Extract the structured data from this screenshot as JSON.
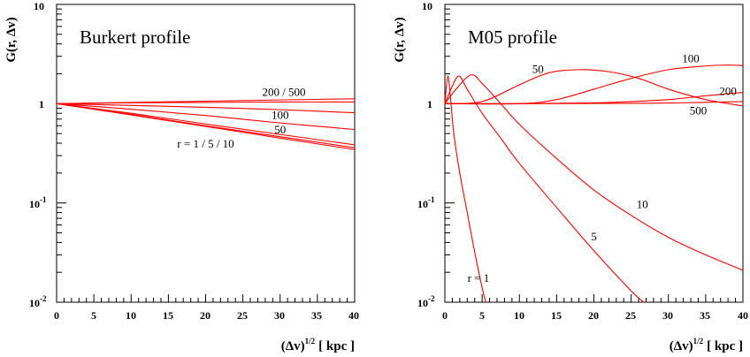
{
  "chart_data": [
    {
      "type": "line",
      "title": "Burkert profile",
      "xlabel": "(Δv)^1/2 [ kpc ]",
      "xlabel_base": "(Δv)",
      "xlabel_sup": "1/2",
      "xlabel_unit": "[ kpc ]",
      "ylabel": "G(r, Δv)",
      "ylabel_text": "G(r, Δv)",
      "xlim": [
        0,
        40
      ],
      "ylim": [
        0.01,
        10
      ],
      "yscale": "log",
      "grid": false,
      "xticks": [
        0,
        5,
        10,
        15,
        20,
        25,
        30,
        35,
        40
      ],
      "yticks": [
        {
          "base": "10",
          "exp": "",
          "value": 10
        },
        {
          "base": "1",
          "exp": "",
          "value": 1
        },
        {
          "base": "10",
          "exp": "-1",
          "value": 0.1
        },
        {
          "base": "10",
          "exp": "-2",
          "value": 0.01
        }
      ],
      "series": [
        {
          "label": "r = 1",
          "x": [
            0,
            10,
            20,
            30,
            40
          ],
          "y": [
            1,
            0.77,
            0.59,
            0.45,
            0.345
          ]
        },
        {
          "label": "r = 5",
          "x": [
            0,
            10,
            20,
            30,
            40
          ],
          "y": [
            1,
            0.78,
            0.6,
            0.465,
            0.36
          ]
        },
        {
          "label": "r = 10",
          "x": [
            0,
            10,
            20,
            30,
            40
          ],
          "y": [
            1,
            0.8,
            0.625,
            0.49,
            0.385
          ]
        },
        {
          "label": "50",
          "x": [
            0,
            10,
            20,
            30,
            40
          ],
          "y": [
            1,
            0.88,
            0.76,
            0.64,
            0.55
          ]
        },
        {
          "label": "100",
          "x": [
            0,
            10,
            20,
            30,
            40
          ],
          "y": [
            1,
            0.96,
            0.92,
            0.87,
            0.81
          ]
        },
        {
          "label": "200",
          "x": [
            0,
            10,
            20,
            30,
            40
          ],
          "y": [
            1,
            1.02,
            1.03,
            1.04,
            1.04
          ]
        },
        {
          "label": "500",
          "x": [
            0,
            10,
            20,
            30,
            40
          ],
          "y": [
            1,
            1.03,
            1.06,
            1.09,
            1.12
          ]
        }
      ],
      "annotations": [
        {
          "text": "200 / 500",
          "x": 30.5,
          "y": 1.2
        },
        {
          "text": "100",
          "x": 30,
          "y": 0.7
        },
        {
          "text": "50",
          "x": 30,
          "y": 0.5
        },
        {
          "text": "r = 1 / 5 / 10",
          "x": 20,
          "y": 0.36
        }
      ]
    },
    {
      "type": "line",
      "title": "M05 profile",
      "xlabel": "(Δv)^1/2 [ kpc ]",
      "xlabel_base": "(Δv)",
      "xlabel_sup": "1/2",
      "xlabel_unit": "[ kpc ]",
      "ylabel": "G(r, Δv)",
      "ylabel_text": "G(r, Δv)",
      "xlim": [
        0,
        40
      ],
      "ylim": [
        0.01,
        10
      ],
      "yscale": "log",
      "grid": false,
      "xticks": [
        0,
        5,
        10,
        15,
        20,
        25,
        30,
        35,
        40
      ],
      "yticks": [
        {
          "base": "10",
          "exp": "",
          "value": 10
        },
        {
          "base": "1",
          "exp": "",
          "value": 1
        },
        {
          "base": "10",
          "exp": "-1",
          "value": 0.1
        },
        {
          "base": "10",
          "exp": "-2",
          "value": 0.01
        }
      ],
      "series": [
        {
          "label": "r = 1",
          "x": [
            0,
            0.4,
            0.8,
            1.2,
            2,
            3,
            4,
            5,
            5.5
          ],
          "y": [
            1,
            1.9,
            1.05,
            0.5,
            0.2,
            0.08,
            0.032,
            0.014,
            0.01
          ]
        },
        {
          "label": "5",
          "x": [
            0,
            1,
            1.9,
            3,
            5,
            7.5,
            10,
            15,
            20,
            25,
            26.7
          ],
          "y": [
            1,
            1.5,
            1.9,
            1.4,
            0.8,
            0.45,
            0.25,
            0.09,
            0.033,
            0.013,
            0.01
          ]
        },
        {
          "label": "10",
          "x": [
            0,
            1.5,
            3.5,
            5,
            7.5,
            10,
            15,
            20,
            25,
            30,
            35,
            40
          ],
          "y": [
            1,
            1.4,
            1.95,
            1.6,
            1.0,
            0.62,
            0.28,
            0.135,
            0.075,
            0.045,
            0.03,
            0.021
          ]
        },
        {
          "label": "50",
          "x": [
            0,
            5,
            10,
            14,
            18,
            22,
            26,
            30,
            35,
            40
          ],
          "y": [
            1,
            1.05,
            1.55,
            2.05,
            2.2,
            2.1,
            1.8,
            1.4,
            1.1,
            0.95
          ]
        },
        {
          "label": "100",
          "x": [
            0,
            10,
            15,
            20,
            25,
            30,
            35,
            38,
            40
          ],
          "y": [
            1,
            1.0,
            1.1,
            1.4,
            1.8,
            2.2,
            2.4,
            2.45,
            2.42
          ]
        },
        {
          "label": "200",
          "x": [
            0,
            10,
            20,
            25,
            30,
            35,
            40
          ],
          "y": [
            1,
            1.0,
            1.02,
            1.05,
            1.1,
            1.2,
            1.3
          ]
        },
        {
          "label": "500",
          "x": [
            0,
            10,
            20,
            30,
            40
          ],
          "y": [
            1,
            1.0,
            1.005,
            1.015,
            1.05
          ]
        }
      ],
      "annotations": [
        {
          "text": "50",
          "x": 12.5,
          "y": 2.05
        },
        {
          "text": "100",
          "x": 33,
          "y": 2.6
        },
        {
          "text": "200",
          "x": 38,
          "y": 1.22
        },
        {
          "text": "500",
          "x": 34,
          "y": 0.78
        },
        {
          "text": "10",
          "x": 26.5,
          "y": 0.089
        },
        {
          "text": "5",
          "x": 20,
          "y": 0.042
        },
        {
          "text": "r = 1",
          "x": 4.5,
          "y": 0.016
        }
      ]
    }
  ]
}
